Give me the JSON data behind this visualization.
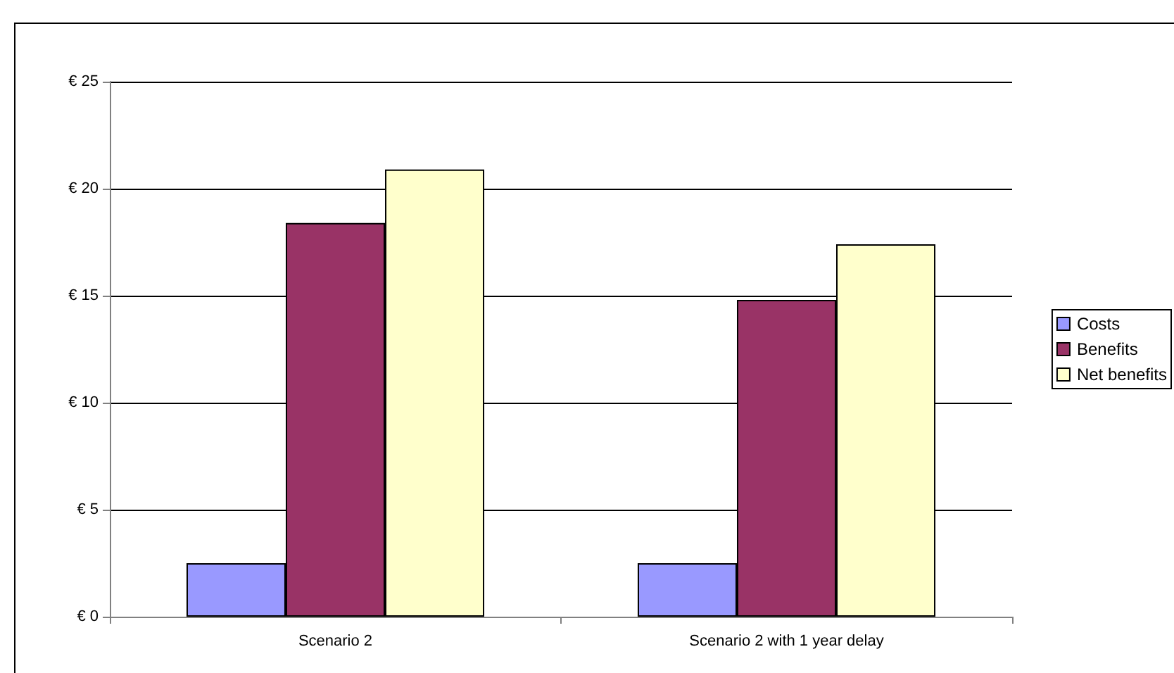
{
  "chart_data": {
    "type": "bar",
    "categories": [
      "Scenario 2",
      "Scenario 2 with 1 year delay"
    ],
    "series": [
      {
        "name": "Costs",
        "color": "#9999ff",
        "values": [
          2.5,
          2.5
        ]
      },
      {
        "name": "Benefits",
        "color": "#993366",
        "values": [
          18.4,
          14.8
        ]
      },
      {
        "name": "Net benefits",
        "color": "#ffffcc",
        "values": [
          20.9,
          17.4
        ]
      }
    ],
    "ylim": [
      0,
      25
    ],
    "yticks": [
      {
        "value": 0,
        "label": "€ 0"
      },
      {
        "value": 5,
        "label": "€ 5"
      },
      {
        "value": 10,
        "label": "€ 10"
      },
      {
        "value": 15,
        "label": "€ 15"
      },
      {
        "value": 20,
        "label": "€ 20"
      },
      {
        "value": 25,
        "label": "€ 25"
      }
    ],
    "grid": "y",
    "legend": "right"
  }
}
